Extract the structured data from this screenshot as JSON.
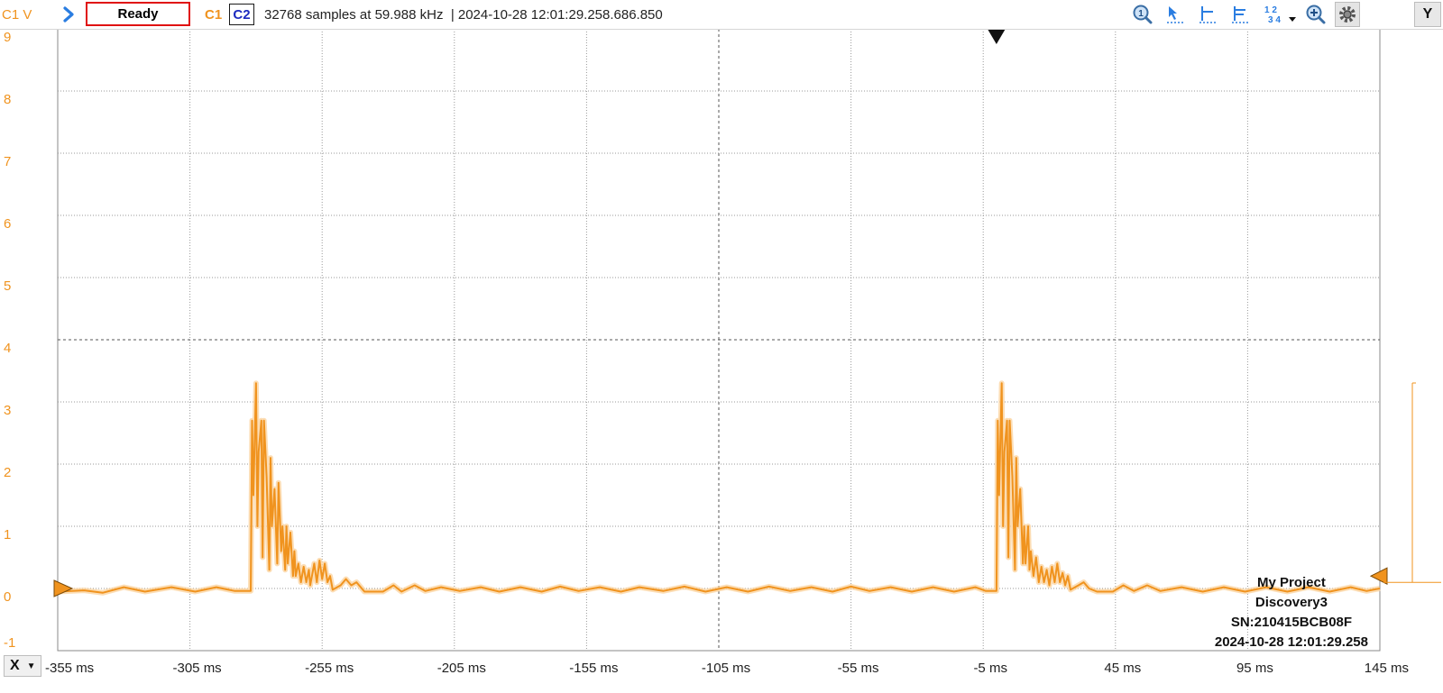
{
  "toolbar": {
    "y_unit_label": "C1 V",
    "status": "Ready",
    "channel1": "C1",
    "channel2": "C2",
    "acquisition_info": "32768 samples at 59.988 kHz",
    "timestamp": "| 2024-10-28 12:01:29.258.686.850",
    "x_button": "X",
    "y_button": "Y",
    "icons": [
      "run-arrow-icon",
      "zoom-1-icon",
      "cursor-arrow-icon",
      "single-marker-icon",
      "double-marker-icon",
      "numbering-icon",
      "dropdown-icon",
      "zoom-icon",
      "settings-gear-icon"
    ]
  },
  "device": {
    "project": "My Project",
    "model": "Discovery3",
    "serial": "SN:210415BCB08F",
    "datetime": "2024-10-28 12:01:29.258"
  },
  "colors": {
    "trace": "#f0931e",
    "trace_glow": "#fbd29b",
    "grid": "#9a9a9a",
    "axis_center": "#555555",
    "status_border": "#e01010",
    "c2_text": "#1d2bc0"
  },
  "chart_data": {
    "type": "line",
    "title": "",
    "xlabel": "",
    "ylabel": "C1 V",
    "xlim": [
      -355,
      145
    ],
    "ylim": [
      -1,
      9
    ],
    "x_unit": "ms",
    "x_tick_labels": [
      "-355 ms",
      "-305 ms",
      "-255 ms",
      "-205 ms",
      "-155 ms",
      "-105 ms",
      "-55 ms",
      "-5 ms",
      "45 ms",
      "95 ms",
      "145 ms"
    ],
    "y_tick_labels": [
      "9",
      "8",
      "7",
      "6",
      "5",
      "4",
      "3",
      "2",
      "1",
      "0",
      "-1"
    ],
    "grid": true,
    "trigger_time_ms": 0,
    "trigger_level_v": 0.2,
    "series": [
      {
        "points": [
          [
            -355,
            -0.05
          ],
          [
            -345,
            -0.03
          ],
          [
            -338,
            -0.07
          ],
          [
            -330,
            0.02
          ],
          [
            -322,
            -0.05
          ],
          [
            -312,
            0.02
          ],
          [
            -303,
            -0.05
          ],
          [
            -295,
            0.02
          ],
          [
            -288,
            -0.04
          ],
          [
            -282,
            -0.04
          ],
          [
            -281.5,
            2.7
          ],
          [
            -281,
            1.5
          ],
          [
            -280,
            3.3
          ],
          [
            -279.5,
            1.0
          ],
          [
            -279,
            2.2
          ],
          [
            -278,
            2.7
          ],
          [
            -277.5,
            0.5
          ],
          [
            -277,
            2.7
          ],
          [
            -276,
            1.8
          ],
          [
            -275,
            0.3
          ],
          [
            -274.5,
            2.1
          ],
          [
            -274,
            1.0
          ],
          [
            -273,
            1.6
          ],
          [
            -272,
            0.4
          ],
          [
            -271.5,
            1.7
          ],
          [
            -270.5,
            0.6
          ],
          [
            -270,
            1.0
          ],
          [
            -269,
            0.3
          ],
          [
            -268.5,
            1.0
          ],
          [
            -268,
            0.4
          ],
          [
            -267,
            0.9
          ],
          [
            -266,
            0.2
          ],
          [
            -265.5,
            0.6
          ],
          [
            -265,
            0.2
          ],
          [
            -264,
            0.4
          ],
          [
            -263,
            0.1
          ],
          [
            -262,
            0.35
          ],
          [
            -261,
            0.1
          ],
          [
            -260,
            0.3
          ],
          [
            -259.5,
            0.05
          ],
          [
            -258,
            0.4
          ],
          [
            -257,
            0.1
          ],
          [
            -256,
            0.45
          ],
          [
            -255,
            0.15
          ],
          [
            -254,
            0.4
          ],
          [
            -253,
            0.1
          ],
          [
            -252,
            0.2
          ],
          [
            -251,
            -0.02
          ],
          [
            -248,
            0.05
          ],
          [
            -246,
            0.15
          ],
          [
            -244,
            0.05
          ],
          [
            -242,
            0.1
          ],
          [
            -239,
            -0.05
          ],
          [
            -232,
            -0.05
          ],
          [
            -228,
            0.05
          ],
          [
            -225,
            -0.05
          ],
          [
            -220,
            0.05
          ],
          [
            -216,
            -0.04
          ],
          [
            -210,
            0.02
          ],
          [
            -203,
            -0.04
          ],
          [
            -195,
            0.02
          ],
          [
            -188,
            -0.05
          ],
          [
            -180,
            0.02
          ],
          [
            -172,
            -0.05
          ],
          [
            -165,
            0.03
          ],
          [
            -158,
            -0.04
          ],
          [
            -150,
            0.02
          ],
          [
            -142,
            -0.05
          ],
          [
            -135,
            0.02
          ],
          [
            -126,
            -0.04
          ],
          [
            -118,
            0.03
          ],
          [
            -110,
            -0.05
          ],
          [
            -102,
            0.02
          ],
          [
            -94,
            -0.05
          ],
          [
            -86,
            0.03
          ],
          [
            -78,
            -0.04
          ],
          [
            -70,
            0.02
          ],
          [
            -62,
            -0.05
          ],
          [
            -55,
            0.03
          ],
          [
            -48,
            -0.04
          ],
          [
            -40,
            0.02
          ],
          [
            -32,
            -0.05
          ],
          [
            -24,
            0.02
          ],
          [
            -16,
            -0.05
          ],
          [
            -8,
            0.02
          ],
          [
            -4,
            -0.04
          ],
          [
            0,
            -0.04
          ],
          [
            0.5,
            2.7
          ],
          [
            1,
            1.5
          ],
          [
            2,
            3.3
          ],
          [
            2.5,
            1.0
          ],
          [
            3,
            2.2
          ],
          [
            4,
            2.7
          ],
          [
            4.5,
            0.5
          ],
          [
            5,
            2.7
          ],
          [
            6,
            1.8
          ],
          [
            7,
            0.3
          ],
          [
            7.5,
            2.1
          ],
          [
            8,
            1.0
          ],
          [
            9,
            1.6
          ],
          [
            10,
            0.4
          ],
          [
            10.5,
            1.0
          ],
          [
            11,
            0.4
          ],
          [
            12,
            1.0
          ],
          [
            12.5,
            0.3
          ],
          [
            13,
            0.6
          ],
          [
            14,
            0.2
          ],
          [
            15,
            0.5
          ],
          [
            16,
            0.1
          ],
          [
            17,
            0.35
          ],
          [
            18,
            0.1
          ],
          [
            19,
            0.3
          ],
          [
            20,
            0.05
          ],
          [
            21,
            0.35
          ],
          [
            22,
            0.1
          ],
          [
            23,
            0.4
          ],
          [
            24,
            0.1
          ],
          [
            25,
            0.25
          ],
          [
            26,
            0.05
          ],
          [
            27,
            0.2
          ],
          [
            28,
            -0.02
          ],
          [
            31,
            0.05
          ],
          [
            33,
            0.1
          ],
          [
            35,
            0.0
          ],
          [
            38,
            -0.05
          ],
          [
            44,
            -0.05
          ],
          [
            48,
            0.05
          ],
          [
            52,
            -0.04
          ],
          [
            57,
            0.05
          ],
          [
            62,
            -0.04
          ],
          [
            70,
            0.02
          ],
          [
            78,
            -0.05
          ],
          [
            86,
            0.02
          ],
          [
            94,
            -0.05
          ],
          [
            102,
            0.02
          ],
          [
            110,
            -0.05
          ],
          [
            118,
            0.02
          ],
          [
            126,
            -0.05
          ],
          [
            134,
            0.02
          ],
          [
            140,
            -0.04
          ],
          [
            145,
            0.0
          ]
        ]
      }
    ]
  }
}
